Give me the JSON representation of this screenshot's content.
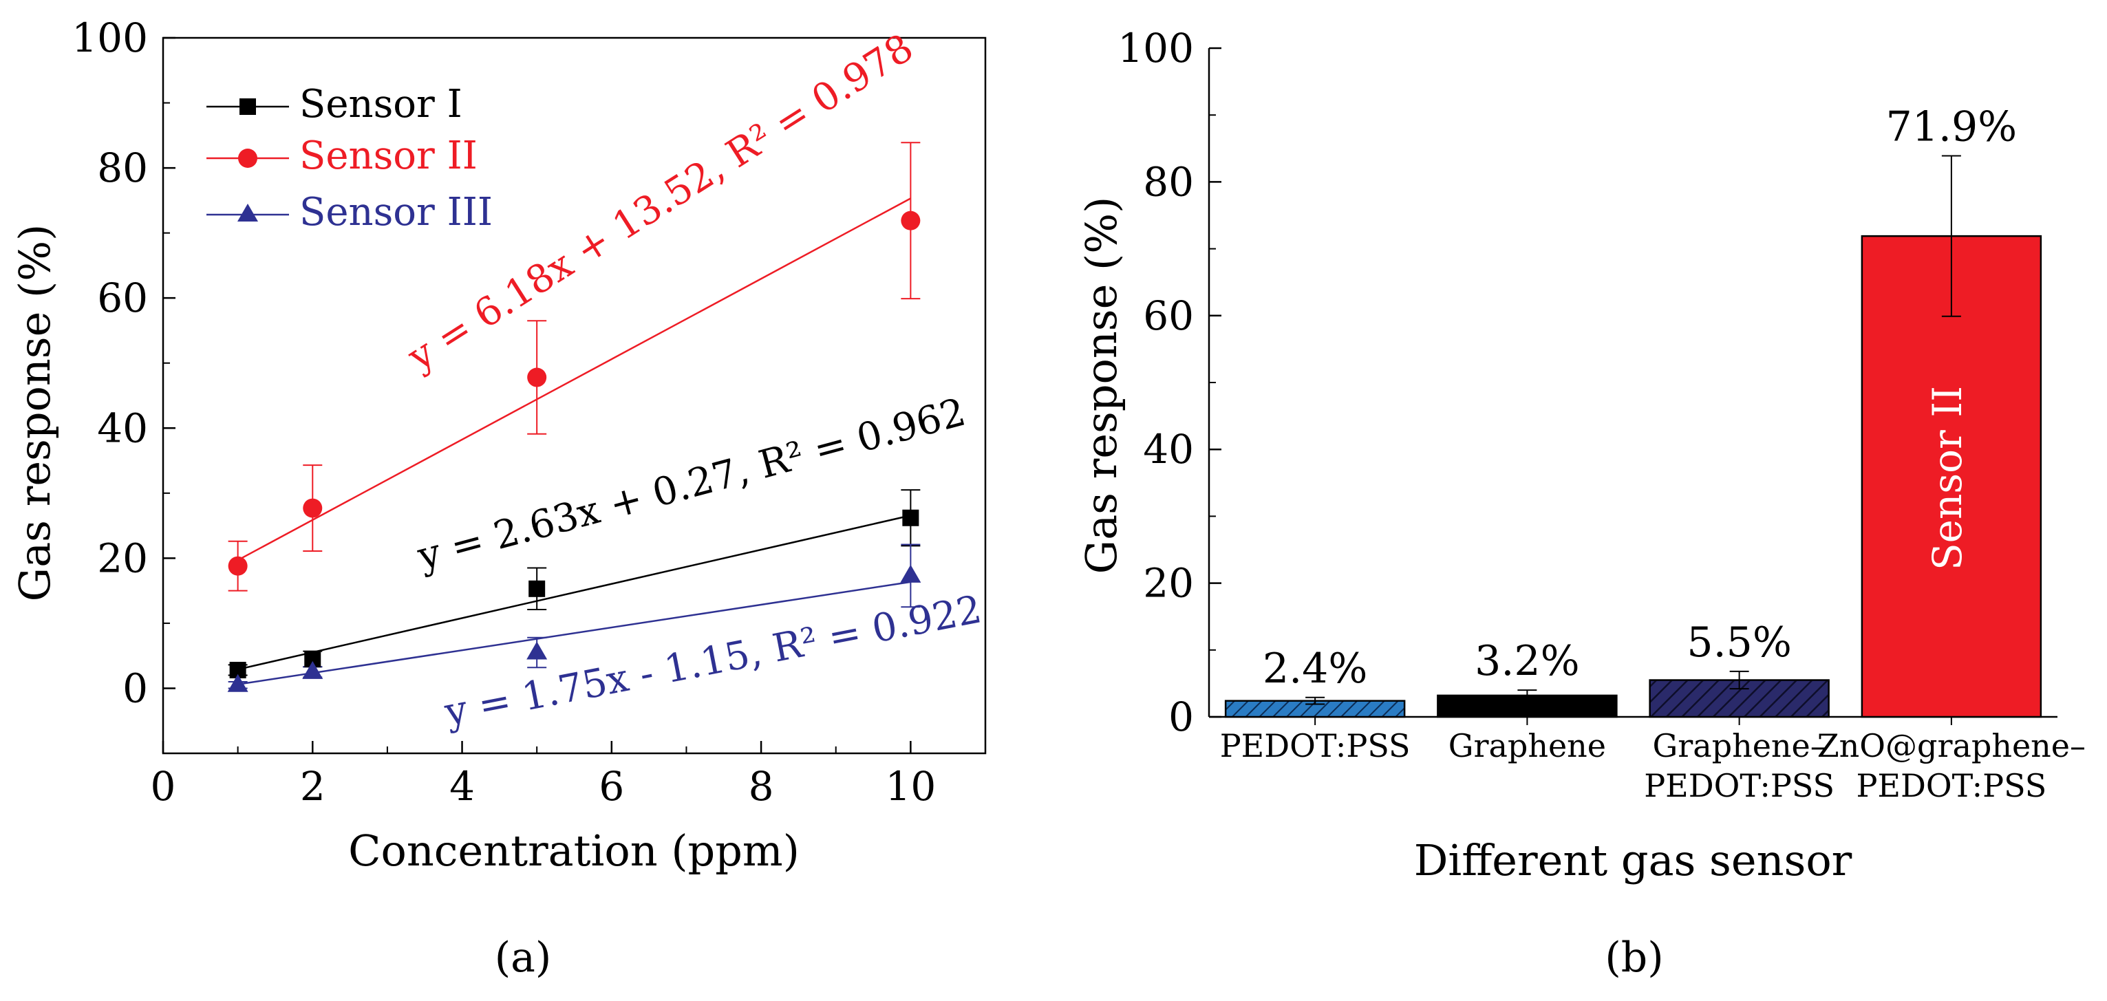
{
  "colors": {
    "black": "#000000",
    "red": "#EE1C25",
    "blue": "#2E3192",
    "bar_pedot": "#2A7CC4",
    "bar_graphene": "#000000",
    "bar_gp": "#24245E",
    "bar_zno": "#EE1C25"
  },
  "chart_data": [
    {
      "panel": "(a)",
      "type": "scatter",
      "xlabel": "Concentration (ppm)",
      "ylabel": "Gas response (%)",
      "xlim": [
        0,
        11
      ],
      "ylim": [
        -10,
        100
      ],
      "xticks": [
        0,
        2,
        4,
        6,
        8,
        10
      ],
      "yticks": [
        0,
        20,
        40,
        60,
        80,
        100
      ],
      "legend_position": "top-left",
      "series": [
        {
          "name": "Sensor I",
          "marker": "square",
          "color": "#000000",
          "x": [
            1,
            2,
            5,
            10
          ],
          "y": [
            2.8,
            4.5,
            15.3,
            26.2
          ],
          "err": [
            0.8,
            1.2,
            3.2,
            4.3
          ],
          "fit": {
            "slope": 2.63,
            "intercept": 0.27,
            "label": "y = 2.63x + 0.27, R² = 0.962"
          }
        },
        {
          "name": "Sensor II",
          "marker": "circle",
          "color": "#EE1C25",
          "x": [
            1,
            2,
            5,
            10
          ],
          "y": [
            18.8,
            27.7,
            47.8,
            71.9
          ],
          "err": [
            3.8,
            6.6,
            8.7,
            12.0
          ],
          "fit": {
            "slope": 6.18,
            "intercept": 13.52,
            "label": "y = 6.18x + 13.52, R² = 0.978"
          }
        },
        {
          "name": "Sensor III",
          "marker": "triangle",
          "color": "#2E3192",
          "x": [
            1,
            2,
            5,
            10
          ],
          "y": [
            0.5,
            2.5,
            5.5,
            17.3
          ],
          "err": [
            0.5,
            0.8,
            2.3,
            4.8
          ],
          "fit": {
            "slope": 1.75,
            "intercept": -1.15,
            "label": "y = 1.75x - 1.15, R² = 0.922"
          }
        }
      ]
    },
    {
      "panel": "(b)",
      "type": "bar",
      "xlabel": "Different gas sensor",
      "ylabel": "Gas response (%)",
      "ylim": [
        0,
        100
      ],
      "yticks": [
        0,
        20,
        40,
        60,
        80,
        100
      ],
      "categories": [
        [
          "PEDOT:PSS"
        ],
        [
          "Graphene"
        ],
        [
          "Graphene–",
          "PEDOT:PSS"
        ],
        [
          "ZnO@graphene–",
          "PEDOT:PSS"
        ]
      ],
      "values": [
        2.4,
        3.2,
        5.5,
        71.9
      ],
      "errors": [
        0.5,
        0.8,
        1.3,
        12.0
      ],
      "data_labels": [
        "2.4%",
        "3.2%",
        "5.5%",
        "71.9%"
      ],
      "in_bar_label": "Sensor II"
    }
  ]
}
